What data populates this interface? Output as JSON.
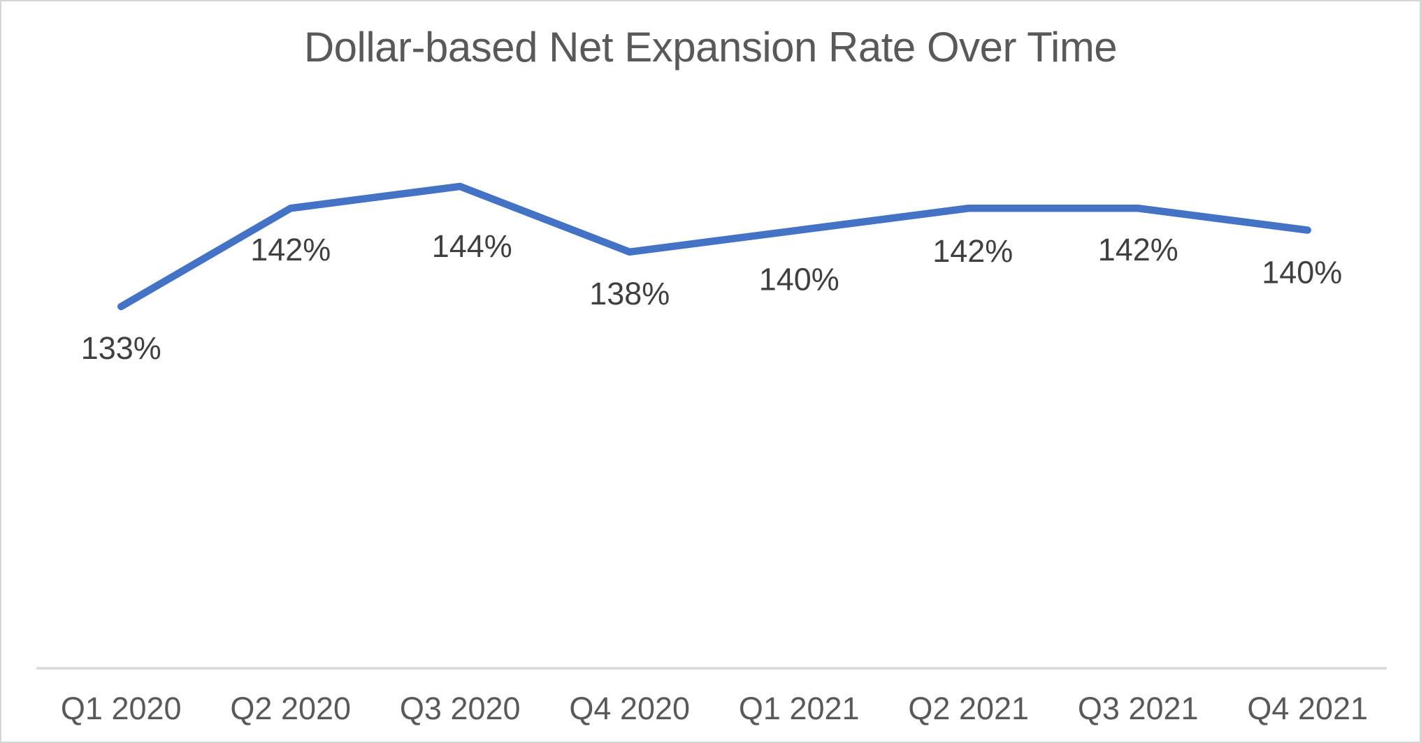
{
  "chart_data": {
    "type": "line",
    "title": "Dollar-based Net Expansion Rate Over Time",
    "categories": [
      "Q1 2020",
      "Q2 2020",
      "Q3 2020",
      "Q4 2020",
      "Q1 2021",
      "Q2 2021",
      "Q3 2021",
      "Q4 2021"
    ],
    "values": [
      133,
      142,
      144,
      138,
      140,
      142,
      142,
      140
    ],
    "data_labels": [
      "133%",
      "142%",
      "144%",
      "138%",
      "140%",
      "142%",
      "142%",
      "140%"
    ],
    "unit": "%",
    "xlabel": "",
    "ylabel": "",
    "ylim": [
      100,
      150
    ],
    "y_axis": "hidden",
    "gridlines": false,
    "legend_position": "none",
    "data_label_position": "below",
    "line_color": "#4472C4",
    "title_color": "#595959",
    "data_label_color": "#404040",
    "axis_label_color": "#595959",
    "axis_line_color": "#D9D9D9",
    "background_color": "#FFFFFF"
  }
}
